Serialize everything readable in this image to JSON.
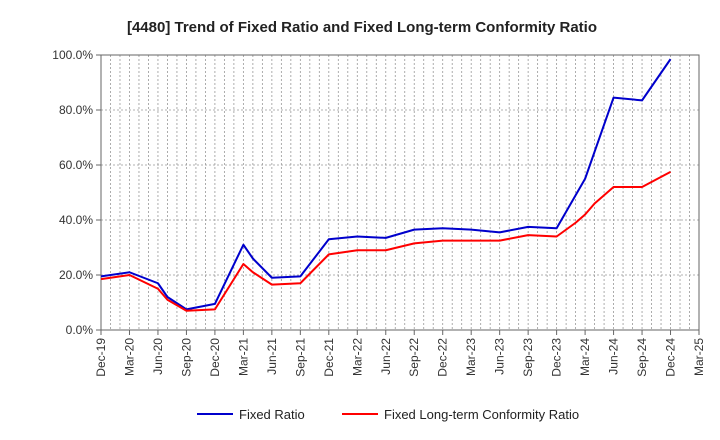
{
  "chart_data": {
    "type": "line",
    "title": "[4480]  Trend of Fixed Ratio and Fixed Long-term Conformity Ratio",
    "xlabel": "",
    "ylabel": "",
    "ylim": [
      0,
      100
    ],
    "y_ticks": [
      "0.0%",
      "20.0%",
      "40.0%",
      "60.0%",
      "80.0%",
      "100.0%"
    ],
    "x_ticks": [
      "Dec-19",
      "Mar-20",
      "Jun-20",
      "Sep-20",
      "Dec-20",
      "Mar-21",
      "Jun-21",
      "Sep-21",
      "Dec-21",
      "Mar-22",
      "Jun-22",
      "Sep-22",
      "Dec-22",
      "Mar-23",
      "Jun-23",
      "Sep-23",
      "Dec-23",
      "Mar-24",
      "Jun-24",
      "Sep-24",
      "Dec-24",
      "Mar-25"
    ],
    "grid": true,
    "legend_position": "bottom",
    "x_months": [
      0,
      1,
      2,
      3,
      4,
      5,
      6,
      7,
      8,
      9,
      10,
      11,
      12,
      13,
      14,
      15,
      16,
      17,
      18,
      19,
      20,
      21,
      22,
      23,
      24,
      25,
      26,
      27,
      28,
      29,
      30,
      31,
      32,
      33,
      34,
      35,
      36,
      37,
      38,
      39,
      40,
      41,
      42,
      43,
      44,
      45,
      46,
      47,
      48,
      49,
      50,
      51,
      52,
      53,
      54,
      55,
      56,
      57,
      58,
      59,
      60,
      61,
      62,
      63
    ],
    "series": [
      {
        "name": "Fixed Ratio",
        "color": "#0000cc",
        "points": [
          [
            0,
            19.5
          ],
          [
            3,
            21
          ],
          [
            6,
            17
          ],
          [
            7,
            12
          ],
          [
            9,
            7.5
          ],
          [
            12,
            9.5
          ],
          [
            15,
            31
          ],
          [
            16,
            26
          ],
          [
            18,
            19
          ],
          [
            21,
            19.5
          ],
          [
            24,
            33
          ],
          [
            27,
            34
          ],
          [
            30,
            33.5
          ],
          [
            33,
            36.5
          ],
          [
            36,
            37
          ],
          [
            39,
            36.5
          ],
          [
            42,
            35.5
          ],
          [
            45,
            37.5
          ],
          [
            48,
            37
          ],
          [
            51,
            55
          ],
          [
            54,
            84.5
          ],
          [
            57,
            83.5
          ],
          [
            60,
            98.5
          ]
        ]
      },
      {
        "name": "Fixed Long-term Conformity Ratio",
        "color": "#ff0000",
        "points": [
          [
            0,
            18.5
          ],
          [
            3,
            20
          ],
          [
            6,
            15
          ],
          [
            7,
            11
          ],
          [
            9,
            7
          ],
          [
            12,
            7.5
          ],
          [
            15,
            24
          ],
          [
            16,
            21
          ],
          [
            18,
            16.5
          ],
          [
            21,
            17
          ],
          [
            24,
            27.5
          ],
          [
            27,
            29
          ],
          [
            30,
            29
          ],
          [
            33,
            31.5
          ],
          [
            36,
            32.5
          ],
          [
            39,
            32.5
          ],
          [
            42,
            32.5
          ],
          [
            45,
            34.5
          ],
          [
            48,
            34
          ],
          [
            50,
            39
          ],
          [
            51,
            42
          ],
          [
            52,
            46
          ],
          [
            54,
            52
          ],
          [
            57,
            52
          ],
          [
            60,
            57.5
          ]
        ]
      }
    ]
  }
}
